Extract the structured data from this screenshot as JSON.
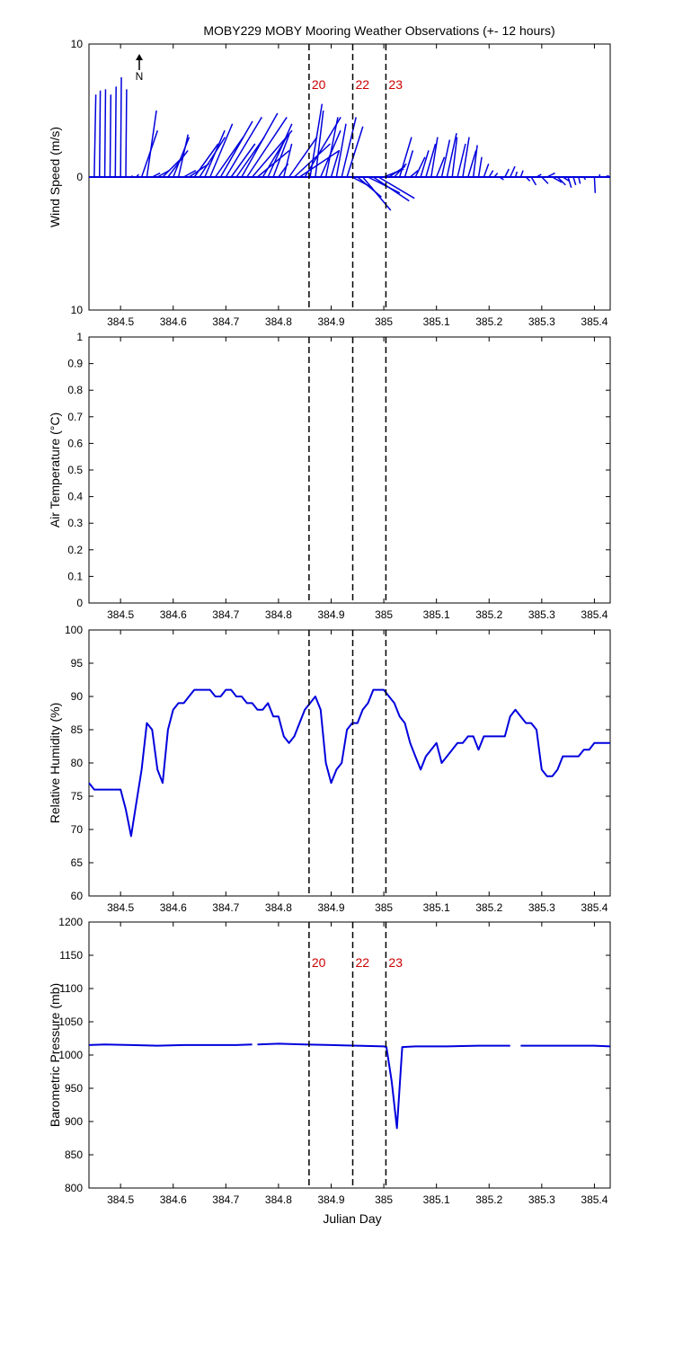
{
  "title": "MOBY229 MOBY Mooring Weather Observations (+- 12 hours)",
  "xlabel": "Julian Day",
  "xlim": [
    384.44,
    385.43
  ],
  "xticks": [
    384.5,
    384.6,
    384.7,
    384.8,
    384.9,
    385,
    385.1,
    385.2,
    385.3,
    385.4
  ],
  "event_lines": [
    {
      "label": "20",
      "x": 384.858
    },
    {
      "label": "22",
      "x": 384.941
    },
    {
      "label": "23",
      "x": 385.004
    }
  ],
  "north_label": "N",
  "colors": {
    "series": "#0000dd",
    "event_label": "#cc0000",
    "axes": "#000000"
  },
  "chart_data": [
    {
      "type": "line",
      "subtype": "wind-vector-stick",
      "ylabel": "Wind Speed (m/s)",
      "ylim": [
        -10,
        10
      ],
      "yticks": [
        -10,
        0,
        10
      ],
      "ytick_labels": [
        "10",
        "0",
        "10"
      ],
      "show_event_labels": true,
      "series": [
        {
          "values_note": "",
          "x": [
            384.45,
            384.46,
            384.47,
            384.48,
            384.49,
            384.5,
            384.51,
            384.52,
            384.53,
            384.54,
            384.55,
            384.56,
            384.57,
            384.58,
            384.59,
            384.6,
            384.61,
            384.62,
            384.63,
            384.64,
            384.65,
            384.66,
            384.67,
            384.68,
            384.69,
            384.7,
            384.71,
            384.72,
            384.73,
            384.74,
            384.75,
            384.76,
            384.77,
            384.78,
            384.79,
            384.8,
            384.81,
            384.82,
            384.83,
            384.84,
            384.85,
            384.86,
            384.87,
            384.88,
            384.89,
            384.9,
            384.91,
            384.92,
            384.93,
            384.94,
            384.95,
            384.96,
            384.97,
            384.98,
            384.99,
            385.0,
            385.01,
            385.02,
            385.03,
            385.04,
            385.05,
            385.06,
            385.07,
            385.08,
            385.09,
            385.1,
            385.11,
            385.12,
            385.13,
            385.14,
            385.15,
            385.16,
            385.17,
            385.18,
            385.19,
            385.2,
            385.21,
            385.22,
            385.23,
            385.24,
            385.25,
            385.26,
            385.27,
            385.28,
            385.29,
            385.3,
            385.31,
            385.32,
            385.33,
            385.34,
            385.35,
            385.36,
            385.37,
            385.38,
            385.39,
            385.4,
            385.41,
            385.42
          ],
          "u": [
            0.2,
            0.1,
            0.1,
            0.1,
            0.1,
            0.1,
            0.1,
            0.2,
            0.3,
            2.0,
            1.2,
            1.0,
            1.5,
            2.5,
            2.5,
            2.0,
            1.2,
            1.5,
            2.5,
            3.0,
            3.2,
            2.5,
            2.8,
            3.5,
            4.0,
            4.5,
            3.0,
            3.5,
            4.5,
            5.0,
            5.0,
            4.0,
            3.0,
            3.0,
            2.0,
            1.2,
            1.0,
            3.5,
            4.5,
            5.0,
            4.5,
            1.5,
            1.0,
            2.5,
            1.5,
            1.0,
            1.2,
            1.8,
            2.0,
            2.5,
            3.0,
            3.5,
            4.0,
            4.5,
            4.5,
            2.5,
            2.0,
            1.5,
            1.5,
            1.0,
            1.0,
            1.2,
            1.0,
            1.2,
            0.8,
            1.0,
            1.0,
            1.2,
            0.6,
            1.0,
            0.8,
            1.0,
            0.5,
            0.4,
            0.6,
            0.5,
            0.4,
            0.5,
            0.5,
            0.6,
            0.2,
            0.3,
            0.5,
            0.6,
            0.6,
            0.8,
            1.0,
            1.2,
            1.0,
            0.8,
            0.4,
            0.3,
            0.2,
            0.2,
            0.2,
            0.1,
            0.0,
            0.5
          ],
          "v": [
            6.2,
            6.5,
            6.6,
            6.2,
            6.8,
            7.5,
            6.6,
            0.1,
            0.2,
            3.5,
            5.0,
            0.3,
            0.5,
            1.5,
            2.0,
            3.0,
            3.2,
            0.5,
            1.0,
            2.5,
            3.0,
            3.5,
            4.0,
            3.0,
            4.2,
            4.5,
            2.5,
            3.0,
            4.8,
            4.5,
            3.5,
            2.0,
            3.0,
            4.0,
            3.2,
            1.0,
            2.5,
            3.0,
            2.5,
            2.0,
            4.5,
            5.5,
            5.0,
            3.5,
            4.5,
            2.0,
            4.0,
            4.5,
            3.8,
            -0.8,
            -1.5,
            -2.5,
            -1.2,
            -1.8,
            -1.6,
            0.6,
            0.8,
            1.0,
            3.0,
            2.0,
            0.5,
            1.5,
            2.0,
            2.5,
            3.0,
            1.5,
            2.8,
            3.3,
            3.0,
            2.5,
            3.0,
            2.0,
            2.4,
            1.5,
            1.0,
            0.5,
            0.3,
            -0.2,
            0.6,
            0.8,
            0.4,
            0.5,
            -0.3,
            -0.6,
            0.2,
            -0.5,
            0.3,
            -0.4,
            -0.6,
            -0.3,
            -0.8,
            -0.6,
            -0.5,
            -0.2,
            0.0,
            -1.2,
            0.2,
            0.1
          ]
        }
      ]
    },
    {
      "type": "line",
      "ylabel": "Air Temperature (°C)",
      "ylim": [
        0,
        1
      ],
      "yticks": [
        0,
        0.1,
        0.2,
        0.3,
        0.4,
        0.5,
        0.6,
        0.7,
        0.8,
        0.9,
        1
      ],
      "ytick_labels": [
        "0",
        "0.1",
        "0.2",
        "0.3",
        "0.4",
        "0.5",
        "0.6",
        "0.7",
        "0.8",
        "0.9",
        "1"
      ],
      "show_event_labels": false,
      "series": [
        {
          "x": [],
          "values": []
        }
      ]
    },
    {
      "type": "line",
      "ylabel": "Relative Humidity (%)",
      "ylim": [
        60,
        100
      ],
      "yticks": [
        60,
        65,
        70,
        75,
        80,
        85,
        90,
        95,
        100
      ],
      "ytick_labels": [
        "60",
        "65",
        "70",
        "75",
        "80",
        "85",
        "90",
        "95",
        "100"
      ],
      "show_event_labels": false,
      "series": [
        {
          "x": [
            384.44,
            384.45,
            384.5,
            384.51,
            384.52,
            384.53,
            384.54,
            384.55,
            384.56,
            384.57,
            384.58,
            384.59,
            384.6,
            384.61,
            384.62,
            384.63,
            384.64,
            384.65,
            384.66,
            384.67,
            384.68,
            384.69,
            384.7,
            384.71,
            384.72,
            384.73,
            384.74,
            384.75,
            384.76,
            384.77,
            384.78,
            384.79,
            384.8,
            384.81,
            384.82,
            384.83,
            384.84,
            384.85,
            384.86,
            384.87,
            384.88,
            384.89,
            384.9,
            384.91,
            384.92,
            384.93,
            384.94,
            384.95,
            384.96,
            384.97,
            384.98,
            384.99,
            385.0,
            385.01,
            385.02,
            385.03,
            385.04,
            385.05,
            385.06,
            385.07,
            385.08,
            385.09,
            385.1,
            385.11,
            385.12,
            385.13,
            385.14,
            385.15,
            385.16,
            385.17,
            385.18,
            385.19,
            385.2,
            385.21,
            385.22,
            385.23,
            385.24,
            385.25,
            385.26,
            385.27,
            385.28,
            385.29,
            385.3,
            385.31,
            385.32,
            385.33,
            385.34,
            385.35,
            385.36,
            385.37,
            385.38,
            385.39,
            385.4,
            385.41,
            385.42,
            385.43
          ],
          "values": [
            77,
            76,
            76,
            73,
            69,
            74,
            79,
            86,
            85,
            79,
            77,
            85,
            88,
            89,
            89,
            90,
            91,
            91,
            91,
            91,
            90,
            90,
            91,
            91,
            90,
            90,
            89,
            89,
            88,
            88,
            89,
            87,
            87,
            84,
            83,
            84,
            86,
            88,
            89,
            90,
            88,
            80,
            77,
            79,
            80,
            85,
            86,
            86,
            88,
            89,
            91,
            91,
            91,
            90,
            89,
            87,
            86,
            83,
            81,
            79,
            81,
            82,
            83,
            80,
            81,
            82,
            83,
            83,
            84,
            84,
            82,
            84,
            84,
            84,
            84,
            84,
            87,
            88,
            87,
            86,
            86,
            85,
            79,
            78,
            78,
            79,
            81,
            81,
            81,
            81,
            82,
            82,
            83,
            83,
            83,
            83
          ]
        }
      ]
    },
    {
      "type": "line",
      "ylabel": "Barometric Pressure (mb)",
      "ylim": [
        800,
        1200
      ],
      "yticks": [
        800,
        850,
        900,
        950,
        1000,
        1050,
        1100,
        1150,
        1200
      ],
      "ytick_labels": [
        "800",
        "850",
        "900",
        "950",
        "1000",
        "1050",
        "1100",
        "1150",
        "1200"
      ],
      "show_event_labels": true,
      "series": [
        {
          "segments": [
            {
              "x": [
                384.44,
                384.47,
                384.52,
                384.57,
                384.62,
                384.67,
                384.72,
                384.75
              ],
              "values": [
                1015,
                1016,
                1015,
                1014,
                1015,
                1015,
                1015,
                1016
              ]
            },
            {
              "x": [
                384.76,
                384.8,
                384.85,
                384.9,
                384.95,
                385.0,
                385.005,
                385.015,
                385.025,
                385.035,
                385.06,
                385.12,
                385.18,
                385.24
              ],
              "values": [
                1016,
                1017,
                1016,
                1015,
                1014,
                1013,
                1012,
                960,
                890,
                1012,
                1013,
                1013,
                1014,
                1014
              ]
            },
            {
              "x": [
                385.26,
                385.3,
                385.35,
                385.4,
                385.43
              ],
              "values": [
                1014,
                1014,
                1014,
                1014,
                1013
              ]
            }
          ]
        }
      ]
    }
  ]
}
